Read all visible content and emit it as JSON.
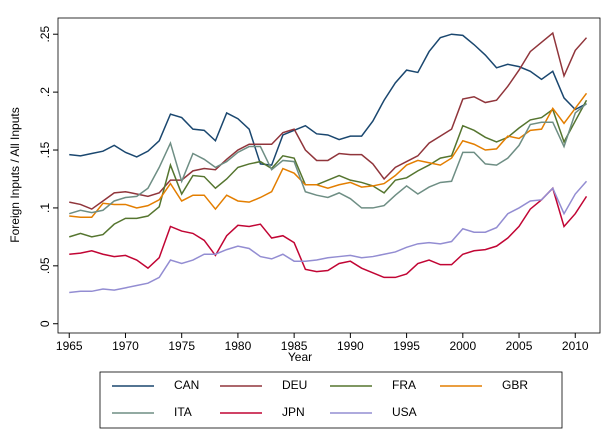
{
  "chart_data": {
    "type": "line",
    "xlabel": "Year",
    "ylabel": "Foreign Inputs / All Inputs",
    "x": [
      1965,
      1966,
      1967,
      1968,
      1969,
      1970,
      1971,
      1972,
      1973,
      1974,
      1975,
      1976,
      1977,
      1978,
      1979,
      1980,
      1981,
      1982,
      1983,
      1984,
      1985,
      1986,
      1987,
      1988,
      1989,
      1990,
      1991,
      1992,
      1993,
      1994,
      1995,
      1996,
      1997,
      1998,
      1999,
      2000,
      2001,
      2002,
      2003,
      2004,
      2005,
      2006,
      2007,
      2008,
      2009,
      2010,
      2011
    ],
    "series": [
      {
        "name": "CAN",
        "color": "#1a476f",
        "values": [
          0.146,
          0.145,
          0.147,
          0.149,
          0.154,
          0.148,
          0.144,
          0.149,
          0.158,
          0.181,
          0.178,
          0.168,
          0.167,
          0.158,
          0.182,
          0.177,
          0.168,
          0.138,
          0.137,
          0.163,
          0.167,
          0.171,
          0.164,
          0.163,
          0.159,
          0.162,
          0.162,
          0.175,
          0.193,
          0.208,
          0.219,
          0.217,
          0.235,
          0.247,
          0.25,
          0.249,
          0.241,
          0.232,
          0.221,
          0.224,
          0.222,
          0.218,
          0.211,
          0.218,
          0.195,
          0.185,
          0.19
        ]
      },
      {
        "name": "DEU",
        "color": "#90353b",
        "values": [
          0.105,
          0.103,
          0.099,
          0.106,
          0.113,
          0.114,
          0.112,
          0.11,
          0.113,
          0.124,
          0.124,
          0.132,
          0.134,
          0.133,
          0.142,
          0.15,
          0.155,
          0.155,
          0.155,
          0.165,
          0.168,
          0.15,
          0.141,
          0.141,
          0.147,
          0.146,
          0.146,
          0.138,
          0.125,
          0.135,
          0.14,
          0.145,
          0.156,
          0.162,
          0.168,
          0.194,
          0.196,
          0.191,
          0.193,
          0.205,
          0.219,
          0.235,
          0.243,
          0.251,
          0.214,
          0.236,
          0.247
        ]
      },
      {
        "name": "FRA",
        "color": "#55752f",
        "values": [
          0.075,
          0.078,
          0.075,
          0.077,
          0.086,
          0.091,
          0.091,
          0.093,
          0.101,
          0.137,
          0.112,
          0.128,
          0.127,
          0.117,
          0.125,
          0.135,
          0.138,
          0.14,
          0.134,
          0.145,
          0.143,
          0.12,
          0.12,
          0.124,
          0.128,
          0.124,
          0.122,
          0.119,
          0.113,
          0.124,
          0.126,
          0.132,
          0.137,
          0.143,
          0.145,
          0.171,
          0.167,
          0.161,
          0.157,
          0.161,
          0.169,
          0.176,
          0.178,
          0.185,
          0.157,
          0.175,
          0.193
        ]
      },
      {
        "name": "GBR",
        "color": "#e37e00",
        "values": [
          0.093,
          0.092,
          0.092,
          0.104,
          0.103,
          0.103,
          0.1,
          0.102,
          0.107,
          0.121,
          0.106,
          0.111,
          0.111,
          0.099,
          0.111,
          0.106,
          0.105,
          0.109,
          0.114,
          0.134,
          0.13,
          0.12,
          0.12,
          0.117,
          0.12,
          0.122,
          0.118,
          0.119,
          0.121,
          0.128,
          0.137,
          0.141,
          0.139,
          0.137,
          0.143,
          0.158,
          0.155,
          0.15,
          0.151,
          0.162,
          0.16,
          0.167,
          0.168,
          0.186,
          0.173,
          0.186,
          0.199
        ]
      },
      {
        "name": "ITA",
        "color": "#6e8e84",
        "values": [
          0.095,
          0.098,
          0.096,
          0.098,
          0.106,
          0.109,
          0.11,
          0.117,
          0.135,
          0.156,
          0.123,
          0.147,
          0.142,
          0.135,
          0.14,
          0.148,
          0.153,
          0.153,
          0.133,
          0.141,
          0.14,
          0.114,
          0.111,
          0.109,
          0.113,
          0.108,
          0.1,
          0.1,
          0.102,
          0.111,
          0.119,
          0.112,
          0.118,
          0.122,
          0.123,
          0.148,
          0.148,
          0.138,
          0.137,
          0.143,
          0.154,
          0.172,
          0.174,
          0.174,
          0.153,
          0.182,
          0.19
        ]
      },
      {
        "name": "JPN",
        "color": "#c10534",
        "values": [
          0.06,
          0.061,
          0.063,
          0.06,
          0.058,
          0.059,
          0.055,
          0.048,
          0.057,
          0.084,
          0.08,
          0.078,
          0.072,
          0.059,
          0.076,
          0.085,
          0.084,
          0.086,
          0.074,
          0.076,
          0.07,
          0.047,
          0.045,
          0.046,
          0.052,
          0.054,
          0.048,
          0.044,
          0.04,
          0.04,
          0.043,
          0.052,
          0.055,
          0.051,
          0.051,
          0.06,
          0.063,
          0.064,
          0.067,
          0.074,
          0.084,
          0.099,
          0.107,
          0.117,
          0.084,
          0.095,
          0.11
        ]
      },
      {
        "name": "USA",
        "color": "#938dd2",
        "values": [
          0.027,
          0.028,
          0.028,
          0.03,
          0.029,
          0.031,
          0.033,
          0.035,
          0.04,
          0.055,
          0.052,
          0.055,
          0.06,
          0.06,
          0.064,
          0.067,
          0.065,
          0.058,
          0.056,
          0.06,
          0.054,
          0.054,
          0.055,
          0.057,
          0.058,
          0.059,
          0.057,
          0.058,
          0.06,
          0.062,
          0.066,
          0.069,
          0.07,
          0.069,
          0.071,
          0.082,
          0.079,
          0.079,
          0.083,
          0.095,
          0.1,
          0.106,
          0.107,
          0.117,
          0.095,
          0.112,
          0.123
        ]
      }
    ],
    "xlim": [
      1964,
      2012.2
    ],
    "xticks": [
      1965,
      1970,
      1975,
      1980,
      1985,
      1990,
      1995,
      2000,
      2005,
      2010
    ],
    "ylim": [
      -0.008,
      0.264
    ],
    "yticks": [
      0,
      {
        "value": 0.05,
        "label": ".05"
      },
      {
        "value": 0.1,
        "label": ".1"
      },
      {
        "value": 0.15,
        "label": ".15"
      },
      {
        "value": 0.2,
        "label": ".2"
      },
      {
        "value": 0.25,
        "label": ".25"
      }
    ],
    "legend": "bottom"
  }
}
